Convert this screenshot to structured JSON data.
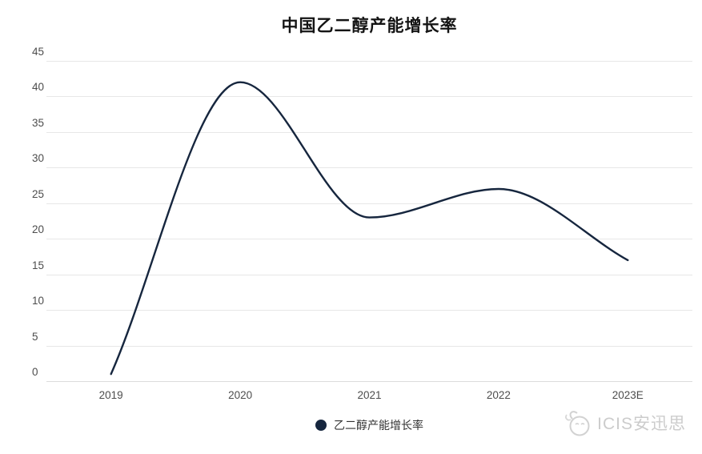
{
  "chart_data": {
    "type": "line",
    "title": "中国乙二醇产能增长率",
    "categories": [
      "2019",
      "2020",
      "2021",
      "2022",
      "2023E"
    ],
    "series": [
      {
        "name": "乙二醇产能增长率",
        "values": [
          1,
          42,
          23,
          27,
          17
        ]
      }
    ],
    "xlabel": "",
    "ylabel": "",
    "ylim": [
      0,
      45
    ],
    "yticks": [
      0,
      5,
      10,
      15,
      20,
      25,
      30,
      35,
      40,
      45
    ],
    "grid": true,
    "smooth": true,
    "legend_position": "bottom-center",
    "line_color": "#16263e",
    "grid_color": "#e7e7e7",
    "axis_label_color": "#4d4d4d",
    "title_color": "#141414"
  },
  "legend": {
    "label": "乙二醇产能增长率"
  },
  "watermark": {
    "text": "ICIS安迅思"
  }
}
